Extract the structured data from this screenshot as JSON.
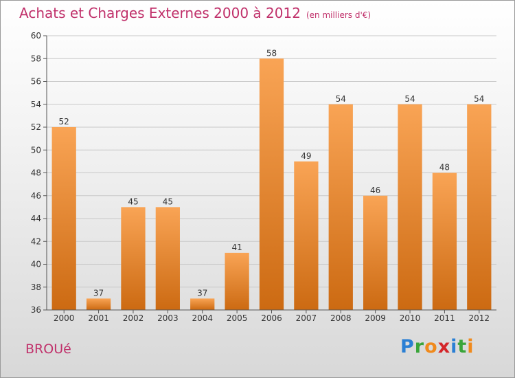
{
  "title": "Achats et Charges Externes 2000 à 2012",
  "subtitle": "(en milliers d'€)",
  "city": "BROUé",
  "logo": {
    "letters": [
      "P",
      "r",
      "o",
      "x",
      "i",
      "t",
      "i"
    ],
    "colors": [
      "#2a7fd4",
      "#3aa53a",
      "#f08a1c",
      "#d4262a",
      "#2a7fd4",
      "#3aa53a",
      "#f08a1c"
    ]
  },
  "colors": {
    "bar_light": "#f9a455",
    "bar_dark": "#cc6a12",
    "title": "#c0306a"
  },
  "chart_data": {
    "type": "bar",
    "title": "Achats et Charges Externes 2000 à 2012",
    "xlabel": "",
    "ylabel": "",
    "categories": [
      "2000",
      "2001",
      "2002",
      "2003",
      "2004",
      "2005",
      "2006",
      "2007",
      "2008",
      "2009",
      "2010",
      "2011",
      "2012"
    ],
    "values": [
      52,
      37,
      45,
      45,
      37,
      41,
      58,
      49,
      54,
      46,
      54,
      48,
      54
    ],
    "ylim": [
      36,
      60
    ],
    "yticks": [
      36,
      38,
      40,
      42,
      44,
      46,
      48,
      50,
      52,
      54,
      56,
      58,
      60
    ],
    "grid": true,
    "legend": "none"
  }
}
